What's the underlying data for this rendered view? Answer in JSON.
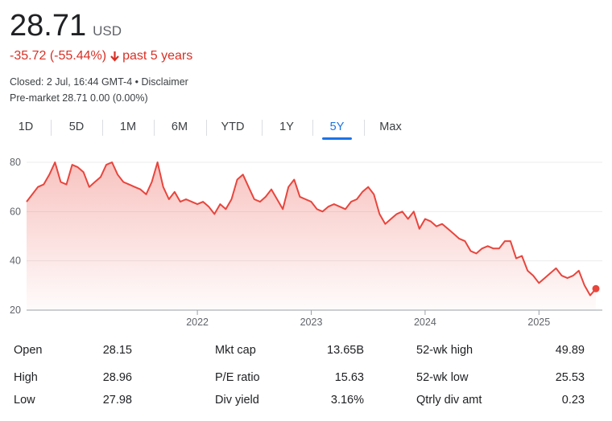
{
  "quote": {
    "price": "28.71",
    "currency": "USD",
    "change": "-35.72 (-55.44%)",
    "period": "past 5 years",
    "closed": "Closed: 2 Jul, 16:44 GMT-4",
    "bullet": " • ",
    "disclaimer": "Disclaimer",
    "premarket": "Pre-market 28.71 0.00 (0.00%)"
  },
  "colors": {
    "negative": "#d93025",
    "accent": "#1a73e8",
    "line": "#e8453c"
  },
  "tabs": [
    {
      "label": "1D",
      "active": false
    },
    {
      "label": "5D",
      "active": false
    },
    {
      "label": "1M",
      "active": false
    },
    {
      "label": "6M",
      "active": false
    },
    {
      "label": "YTD",
      "active": false
    },
    {
      "label": "1Y",
      "active": false
    },
    {
      "label": "5Y",
      "active": true
    },
    {
      "label": "Max",
      "active": false
    }
  ],
  "chart_data": {
    "type": "area",
    "y_ticks": [
      "80",
      "60",
      "40",
      "20"
    ],
    "ylim": [
      20,
      80
    ],
    "x_ticks": [
      {
        "label": "2022",
        "x": 2022.0
      },
      {
        "label": "2023",
        "x": 2023.0
      },
      {
        "label": "2024",
        "x": 2024.0
      },
      {
        "label": "2025",
        "x": 2025.0
      }
    ],
    "grid": true,
    "series": [
      {
        "x": [
          2020.5,
          2020.55,
          2020.6,
          2020.65,
          2020.7,
          2020.75,
          2020.8,
          2020.85,
          2020.9,
          2020.95,
          2021.0,
          2021.05,
          2021.1,
          2021.15,
          2021.2,
          2021.25,
          2021.3,
          2021.35,
          2021.4,
          2021.45,
          2021.5,
          2021.55,
          2021.6,
          2021.65,
          2021.7,
          2021.75,
          2021.8,
          2021.85,
          2021.9,
          2021.95,
          2022.0,
          2022.05,
          2022.1,
          2022.15,
          2022.2,
          2022.25,
          2022.3,
          2022.35,
          2022.4,
          2022.45,
          2022.5,
          2022.55,
          2022.6,
          2022.65,
          2022.7,
          2022.75,
          2022.8,
          2022.85,
          2022.9,
          2022.95,
          2023.0,
          2023.05,
          2023.1,
          2023.15,
          2023.2,
          2023.25,
          2023.3,
          2023.35,
          2023.4,
          2023.45,
          2023.5,
          2023.55,
          2023.6,
          2023.65,
          2023.7,
          2023.75,
          2023.8,
          2023.85,
          2023.9,
          2023.95,
          2024.0,
          2024.05,
          2024.1,
          2024.15,
          2024.2,
          2024.25,
          2024.3,
          2024.35,
          2024.4,
          2024.45,
          2024.5,
          2024.55,
          2024.6,
          2024.65,
          2024.7,
          2024.75,
          2024.8,
          2024.85,
          2024.9,
          2024.95,
          2025.0,
          2025.05,
          2025.1,
          2025.15,
          2025.2,
          2025.25,
          2025.3,
          2025.35,
          2025.4,
          2025.45,
          2025.5
        ],
        "values": [
          64,
          67,
          70,
          71,
          75,
          80,
          72,
          71,
          79,
          78,
          76,
          70,
          72,
          74,
          79,
          80,
          75,
          72,
          71,
          70,
          69,
          67,
          72,
          80,
          70,
          65,
          68,
          64,
          65,
          64,
          63,
          64,
          62,
          59,
          63,
          61,
          65,
          73,
          75,
          70,
          65,
          64,
          66,
          69,
          65,
          61,
          70,
          73,
          66,
          65,
          64,
          61,
          60,
          62,
          63,
          62,
          61,
          64,
          65,
          68,
          70,
          67,
          59,
          55,
          57,
          59,
          60,
          57,
          60,
          53,
          57,
          56,
          54,
          55,
          53,
          51,
          49,
          48,
          44,
          43,
          45,
          46,
          45,
          45,
          48,
          48,
          41,
          42,
          36,
          34,
          31,
          33,
          35,
          37,
          34,
          33,
          34,
          36,
          30,
          26,
          28.71
        ],
        "marker_last": true
      }
    ]
  },
  "stats": [
    [
      {
        "label": "Open",
        "value": "28.15"
      },
      {
        "label": "Mkt cap",
        "value": "13.65B"
      },
      {
        "label": "52-wk high",
        "value": "49.89"
      }
    ],
    [
      {
        "label": "High",
        "value": "28.96"
      },
      {
        "label": "P/E ratio",
        "value": "15.63"
      },
      {
        "label": "52-wk low",
        "value": "25.53"
      }
    ],
    [
      {
        "label": "Low",
        "value": "27.98"
      },
      {
        "label": "Div yield",
        "value": "3.16%"
      },
      {
        "label": "Qtrly div amt",
        "value": "0.23"
      }
    ]
  ]
}
